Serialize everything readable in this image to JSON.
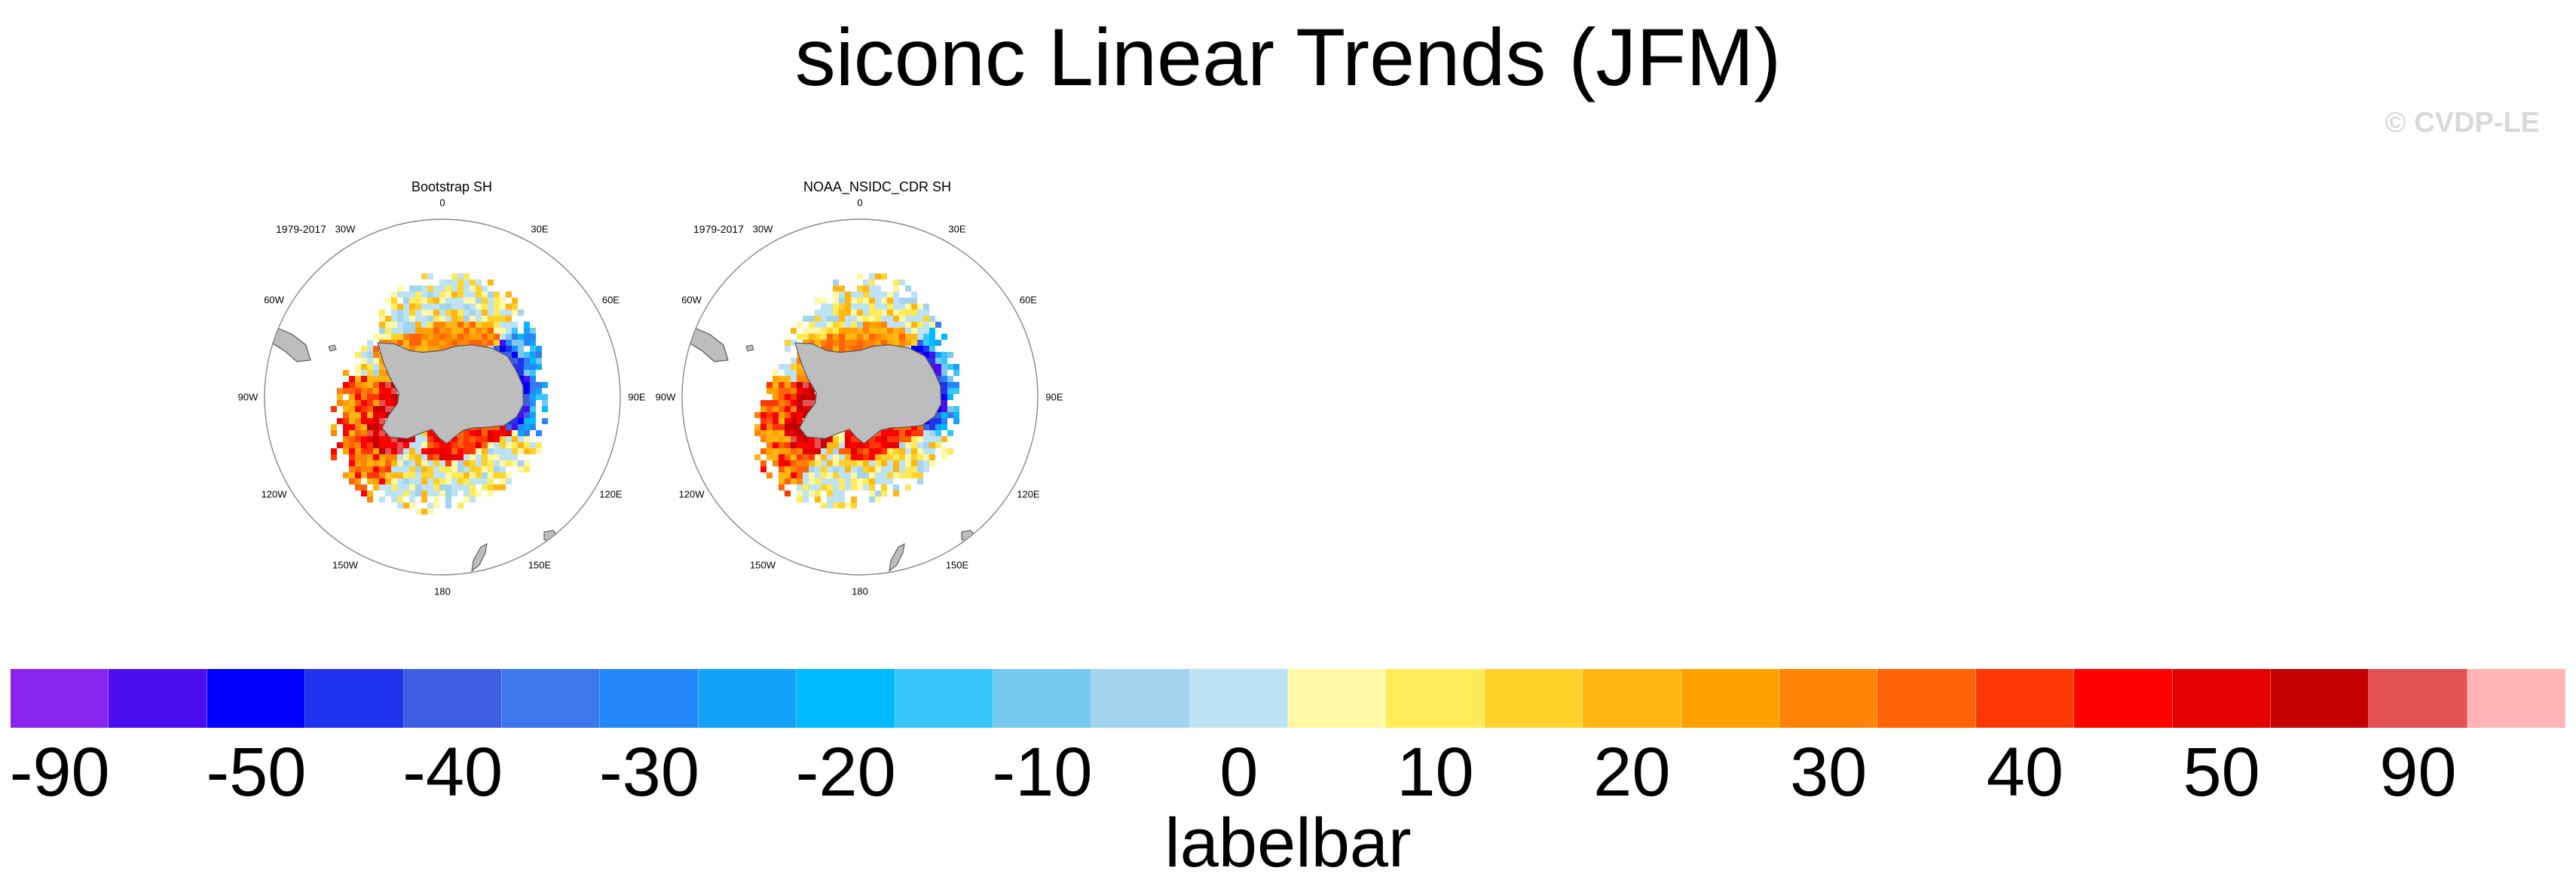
{
  "title": "siconc Linear Trends (JFM)",
  "watermark": "© CVDP-LE",
  "panels": [
    {
      "title": "Bootstrap SH",
      "period": "1979-2017",
      "variant": 0
    },
    {
      "title": "NOAA_NSIDC_CDR SH",
      "period": "1979-2017",
      "variant": 1
    }
  ],
  "lon_labels": [
    "0",
    "30E",
    "60E",
    "90E",
    "120E",
    "150E",
    "180",
    "150W",
    "120W",
    "90W",
    "60W",
    "30W"
  ],
  "colorbar": {
    "label": "labelbar",
    "ticks": [
      "-90",
      "-50",
      "-40",
      "-30",
      "-20",
      "-10",
      "0",
      "10",
      "20",
      "30",
      "40",
      "50",
      "90"
    ],
    "colors": [
      "#8a23ee",
      "#4a0ef0",
      "#0000ff",
      "#2034ee",
      "#3d5ee2",
      "#3a78ec",
      "#2588fa",
      "#12a3f8",
      "#00baff",
      "#36c6f8",
      "#78c9f1",
      "#a2d4ef",
      "#bde2f4",
      "#fff8a4",
      "#ffea58",
      "#ffd12a",
      "#ffb611",
      "#ffa100",
      "#ff8408",
      "#ff6305",
      "#ff3705",
      "#ff0000",
      "#e20000",
      "#c50000",
      "#e35252",
      "#ffb3b5"
    ]
  }
}
